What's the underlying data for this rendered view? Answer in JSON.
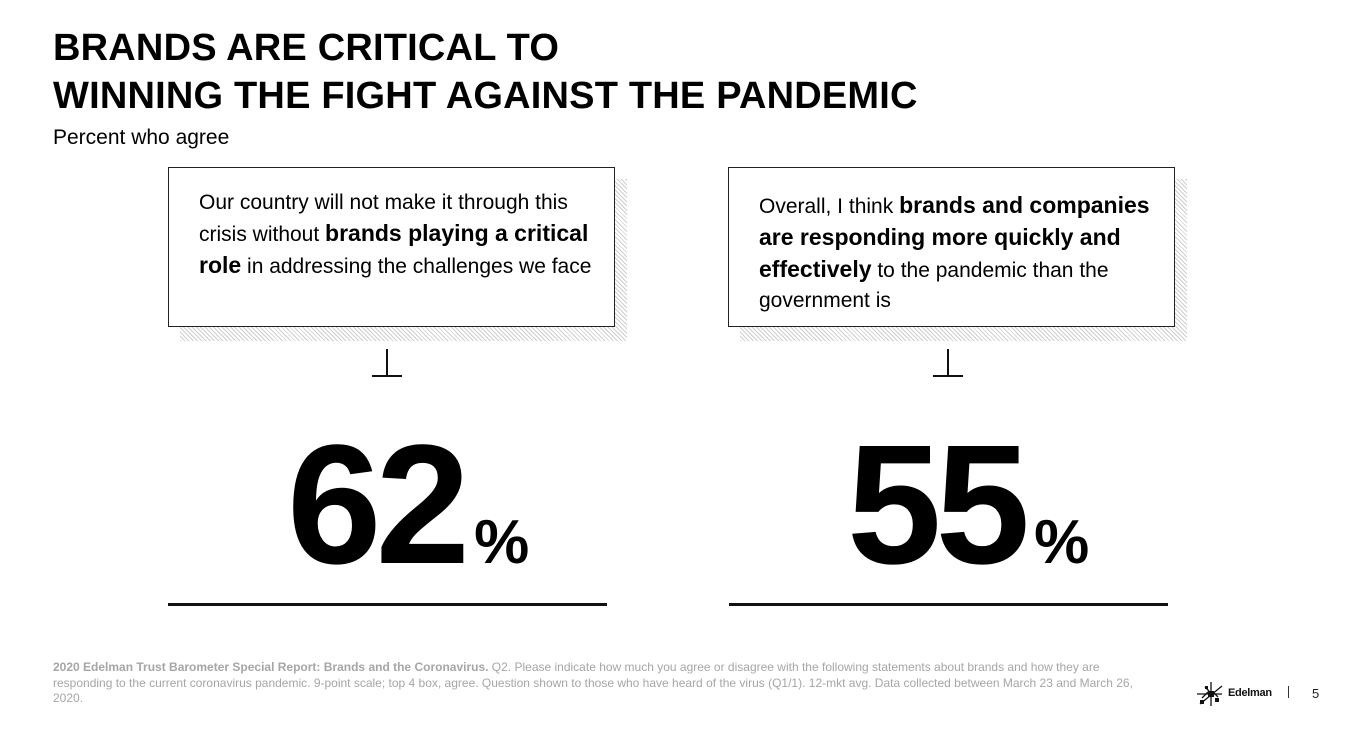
{
  "title": {
    "line1": "BRANDS ARE CRITICAL TO",
    "line2": "WINNING THE FIGHT AGAINST THE PANDEMIC"
  },
  "subtitle": "Percent who agree",
  "statements": [
    {
      "parts": [
        {
          "text": "Our country will not make it through this crisis without ",
          "bold": false
        },
        {
          "text": "brands playing a critical role",
          "bold": true
        },
        {
          "text": " in addressing the challenges we face",
          "bold": false
        }
      ],
      "value": "62",
      "unit": "%"
    },
    {
      "parts": [
        {
          "text": "Overall, I think ",
          "bold": false
        },
        {
          "text": "brands and companies are responding more quickly and effectively",
          "bold": true
        },
        {
          "text": " to the pandemic than the government is",
          "bold": false
        }
      ],
      "value": "55",
      "unit": "%"
    }
  ],
  "footnote": {
    "source": "2020 Edelman Trust Barometer Special Report: Brands and the Coronavirus.",
    "text": " Q2. Please indicate how much you agree or disagree with the following statements about brands and how they are responding to the current coronavirus pandemic. 9-point scale; top 4 box, agree. Question shown to those who have heard of the virus (Q1/1). 12-mkt avg. Data collected between March 23 and March 26, 2020."
  },
  "logo": {
    "icon": "edelman-logo-icon",
    "wordmark": "Edelman"
  },
  "page_number": "5",
  "colors": {
    "text": "#000000",
    "footnote": "#a6a6a6",
    "shadow_hatch": "#cfcfcf"
  }
}
